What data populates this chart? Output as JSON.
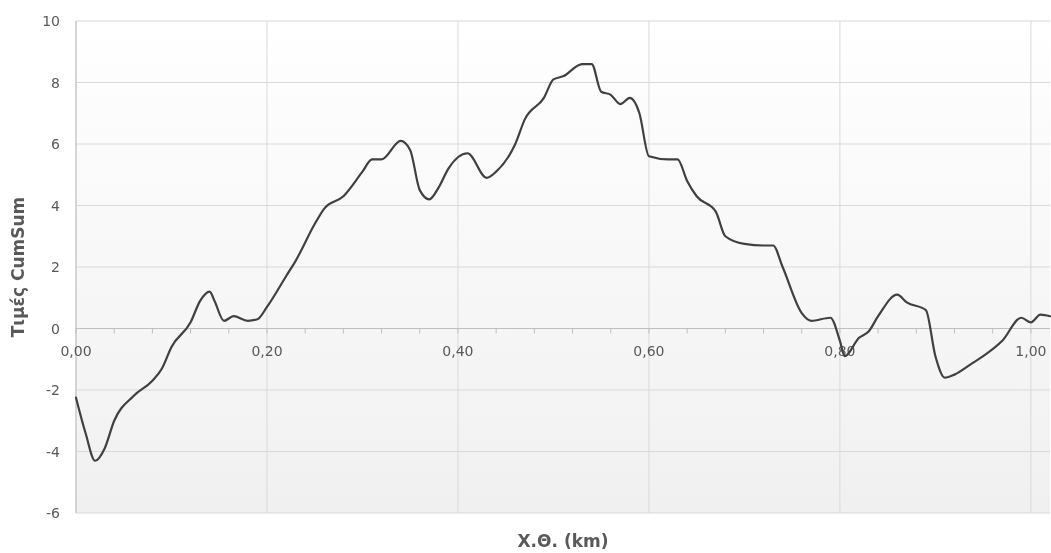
{
  "chart_data": {
    "type": "line",
    "xlabel": "Χ.Θ. (km)",
    "ylabel": "Τιμές CumSum",
    "xlim": [
      0,
      1.02
    ],
    "ylim": [
      -6,
      10
    ],
    "xticks": [
      {
        "value": 0,
        "label": "0,00"
      },
      {
        "value": 0.04,
        "label": null
      },
      {
        "value": 0.08,
        "label": null
      },
      {
        "value": 0.12,
        "label": null
      },
      {
        "value": 0.16,
        "label": null
      },
      {
        "value": 0.2,
        "label": "0,20"
      },
      {
        "value": 0.24,
        "label": null
      },
      {
        "value": 0.28,
        "label": null
      },
      {
        "value": 0.32,
        "label": null
      },
      {
        "value": 0.36,
        "label": null
      },
      {
        "value": 0.4,
        "label": "0,40"
      },
      {
        "value": 0.44,
        "label": null
      },
      {
        "value": 0.48,
        "label": null
      },
      {
        "value": 0.52,
        "label": null
      },
      {
        "value": 0.56,
        "label": null
      },
      {
        "value": 0.6,
        "label": "0,60"
      },
      {
        "value": 0.64,
        "label": null
      },
      {
        "value": 0.68,
        "label": null
      },
      {
        "value": 0.72,
        "label": null
      },
      {
        "value": 0.76,
        "label": null
      },
      {
        "value": 0.8,
        "label": "0,80"
      },
      {
        "value": 0.84,
        "label": null
      },
      {
        "value": 0.88,
        "label": null
      },
      {
        "value": 0.92,
        "label": null
      },
      {
        "value": 0.96,
        "label": null
      },
      {
        "value": 1,
        "label": "1,00"
      }
    ],
    "yticks": [
      -6,
      -4,
      -2,
      0,
      2,
      4,
      6,
      8,
      10
    ],
    "grid": true,
    "marker": "none",
    "line_style": "solid",
    "series": [
      {
        "color": "#404040",
        "x": [
          0,
          0.01,
          0.02,
          0.03,
          0.04,
          0.06,
          0.08,
          0.09,
          0.1,
          0.12,
          0.13,
          0.14,
          0.145,
          0.155,
          0.165,
          0.18,
          0.19,
          0.2,
          0.22,
          0.23,
          0.25,
          0.26,
          0.28,
          0.3,
          0.31,
          0.32,
          0.34,
          0.35,
          0.36,
          0.37,
          0.38,
          0.39,
          0.41,
          0.43,
          0.44,
          0.46,
          0.47,
          0.49,
          0.5,
          0.51,
          0.53,
          0.54,
          0.55,
          0.56,
          0.57,
          0.58,
          0.59,
          0.6,
          0.62,
          0.63,
          0.64,
          0.65,
          0.67,
          0.68,
          0.7,
          0.72,
          0.73,
          0.74,
          0.76,
          0.77,
          0.79,
          0.8,
          0.805,
          0.82,
          0.83,
          0.84,
          0.86,
          0.87,
          0.89,
          0.9,
          0.91,
          0.92,
          0.94,
          0.95,
          0.97,
          0.99,
          1,
          1.01,
          1.02
        ],
        "values": [
          -2.25,
          -3.4,
          -4.3,
          -3.9,
          -3,
          -2.2,
          -1.7,
          -1.3,
          -0.6,
          0.2,
          0.9,
          1.2,
          0.9,
          0.25,
          0.4,
          0.25,
          0.3,
          0.7,
          1.7,
          2.2,
          3.4,
          3.9,
          4.3,
          5.1,
          5.5,
          5.5,
          6.1,
          5.8,
          4.5,
          4.2,
          4.6,
          5.2,
          5.7,
          4.9,
          5.1,
          6,
          6.8,
          7.5,
          8.1,
          8.2,
          8.6,
          8.6,
          7.7,
          7.6,
          7.3,
          7.5,
          7,
          5.6,
          5.5,
          5.5,
          4.8,
          4.3,
          3.8,
          3,
          2.75,
          2.7,
          2.7,
          2,
          0.5,
          0.25,
          0.35,
          -0.4,
          -0.9,
          -0.3,
          -0.1,
          0.4,
          1.1,
          0.85,
          0.6,
          -0.9,
          -1.6,
          -1.5,
          -1.1,
          -0.9,
          -0.4,
          0.35,
          0.2,
          0.45,
          0.4
        ]
      }
    ]
  }
}
